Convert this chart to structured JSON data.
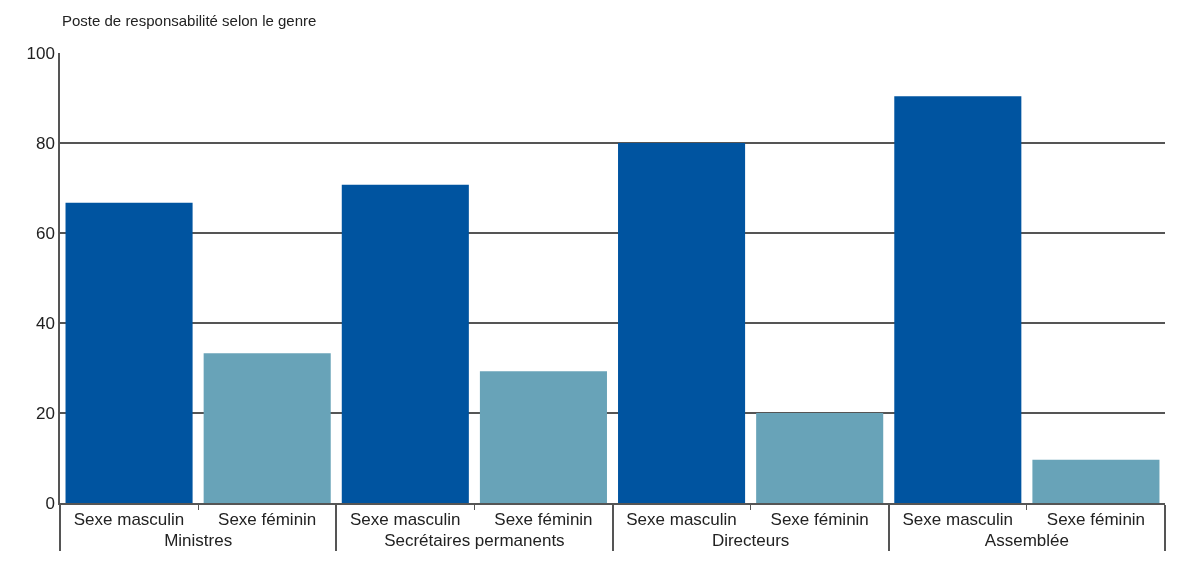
{
  "chart_data": {
    "type": "bar",
    "title": "Poste de responsabilité selon le genre",
    "categories": [
      "Ministres",
      "Secrétaires permanents",
      "Directeurs",
      "Assemblée"
    ],
    "series": [
      {
        "name": "Sexe masculin",
        "color": "#0054a0",
        "values": [
          66.7,
          70.7,
          80,
          90.4
        ]
      },
      {
        "name": "Sexe féminin",
        "color": "#68a3b8",
        "values": [
          33.3,
          29.3,
          20,
          9.6
        ]
      }
    ],
    "ylim": [
      0,
      100
    ],
    "yticks": [
      0,
      20,
      40,
      60,
      80,
      100
    ],
    "grid": "y",
    "legend": false
  }
}
